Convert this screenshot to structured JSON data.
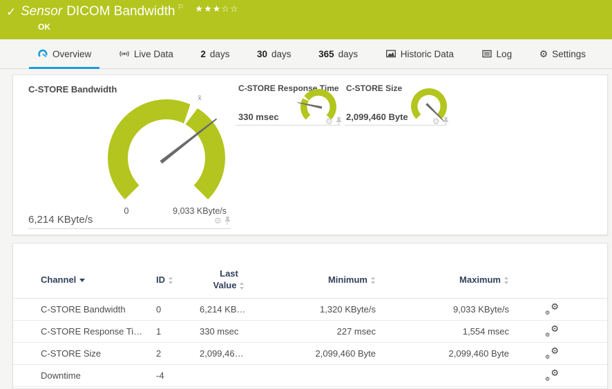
{
  "colors": {
    "brand_green": "#b3c51e",
    "accent_blue": "#1b9dd9",
    "table_header_text": "#33415c"
  },
  "icons": {
    "check": "✓",
    "flag": "⚐",
    "gear": "⚙",
    "avg_marker": "x̄"
  },
  "banner": {
    "kind": "Sensor",
    "title": "DICOM Bandwidth",
    "stars_filled": "★★★",
    "stars_empty": "☆☆",
    "status": "OK"
  },
  "tabs": [
    {
      "label": "Overview",
      "icon": "gauge-icon",
      "active": true
    },
    {
      "label": "Live Data",
      "icon": "broadcast-icon",
      "active": false
    },
    {
      "num": "2",
      "unit": "days",
      "active": false
    },
    {
      "num": "30",
      "unit": "days",
      "active": false
    },
    {
      "num": "365",
      "unit": "days",
      "active": false
    },
    {
      "label": "Historic Data",
      "icon": "chart-icon",
      "active": false
    },
    {
      "label": "Log",
      "icon": "log-icon",
      "active": false
    },
    {
      "label": "Settings",
      "icon": "gear-icon",
      "active": false
    }
  ],
  "gauges": {
    "main": {
      "title": "C-STORE Bandwidth",
      "value": "6,214 KByte/s",
      "scale_min": "0",
      "scale_max": "9,033 KByte/s",
      "needle_angle_deg": 52
    },
    "response_time": {
      "title": "C-STORE Response Time",
      "value": "330 msec",
      "needle_angle_deg": -78
    },
    "size": {
      "title": "C-STORE Size",
      "value": "2,099,460 Byte",
      "needle_angle_deg": 135
    }
  },
  "table": {
    "headers": {
      "channel": "Channel",
      "id": "ID",
      "last_value": "Last Value",
      "minimum": "Minimum",
      "maximum": "Maximum"
    },
    "rows": [
      {
        "channel": "C-STORE Bandwidth",
        "id": "0",
        "last_value": "6,214 KB…",
        "minimum": "1,320 KByte/s",
        "maximum": "9,033 KByte/s"
      },
      {
        "channel": "C-STORE Response Ti…",
        "id": "1",
        "last_value": "330 msec",
        "minimum": "227 msec",
        "maximum": "1,554 msec"
      },
      {
        "channel": "C-STORE Size",
        "id": "2",
        "last_value": "2,099,46…",
        "minimum": "2,099,460 Byte",
        "maximum": "2,099,460 Byte"
      },
      {
        "channel": "Downtime",
        "id": "-4",
        "last_value": "",
        "minimum": "",
        "maximum": ""
      }
    ]
  }
}
